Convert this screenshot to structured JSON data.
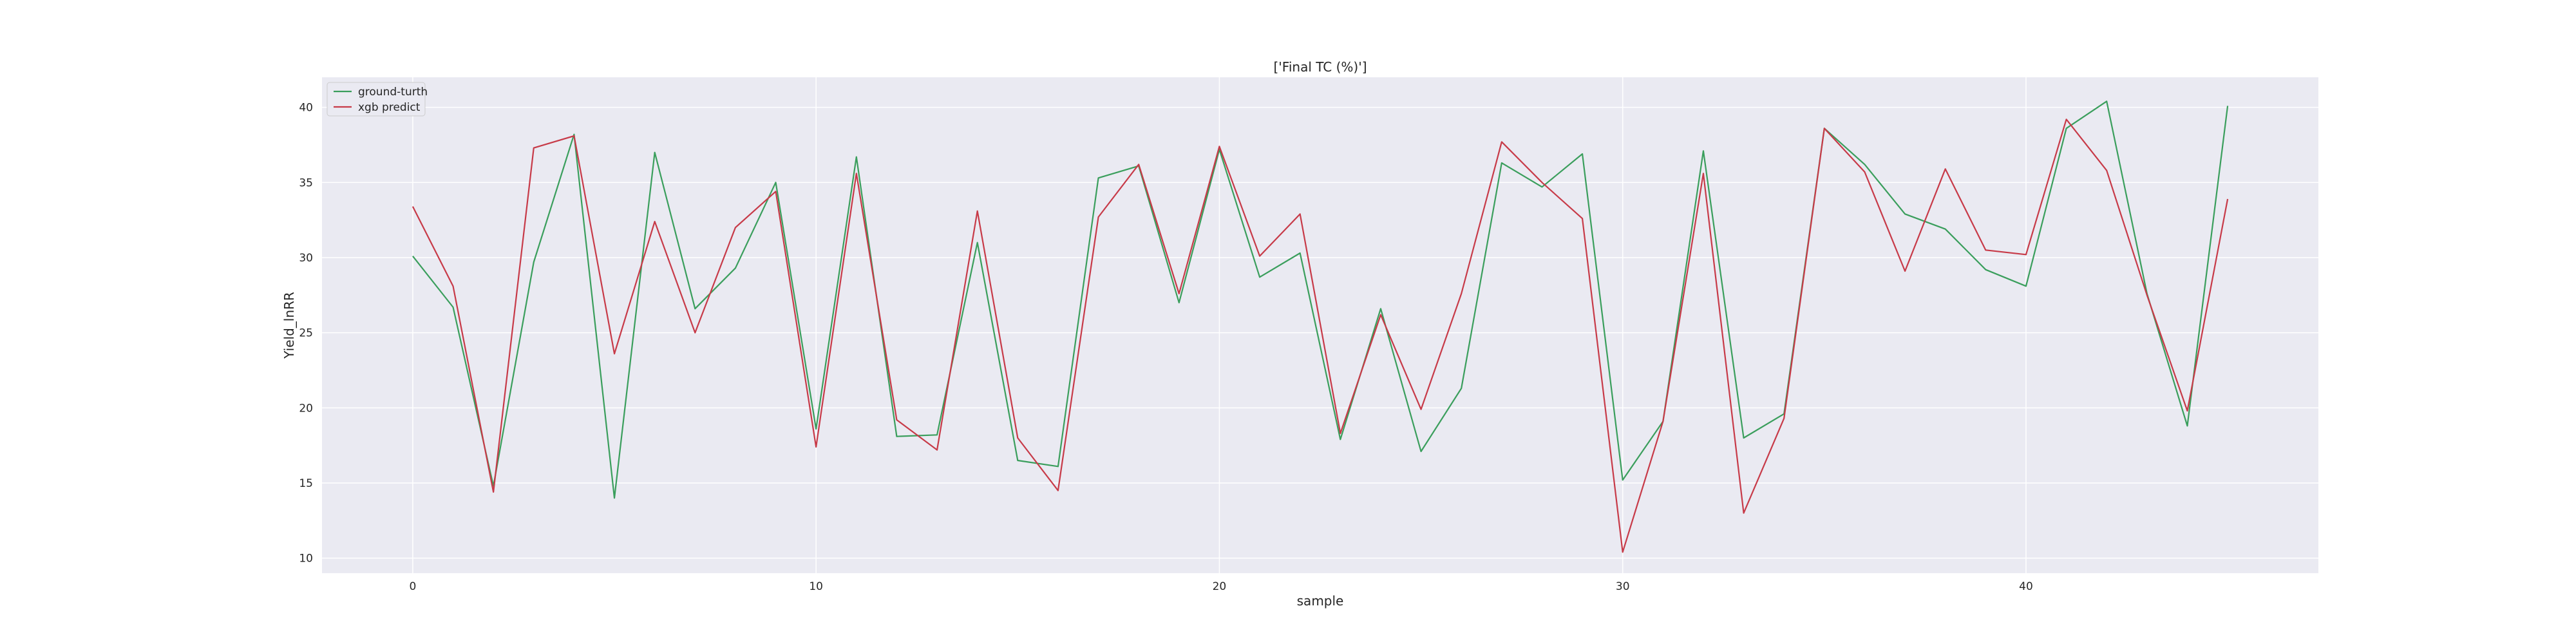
{
  "chart_data": {
    "type": "line",
    "title": "['Final TC (%)']",
    "xlabel": "sample",
    "ylabel": "Yield_lnRR",
    "xlim": [
      -2.25,
      47.25
    ],
    "ylim": [
      9.0,
      42.0
    ],
    "xticks": [
      0,
      10,
      20,
      30,
      40
    ],
    "yticks": [
      10,
      15,
      20,
      25,
      30,
      35,
      40
    ],
    "grid": true,
    "legend_position": "top-left",
    "x": [
      0,
      1,
      2,
      3,
      4,
      5,
      6,
      7,
      8,
      9,
      10,
      11,
      12,
      13,
      14,
      15,
      16,
      17,
      18,
      19,
      20,
      21,
      22,
      23,
      24,
      25,
      26,
      27,
      28,
      29,
      30,
      31,
      32,
      33,
      34,
      35,
      36,
      37,
      38,
      39,
      40,
      41,
      42,
      43,
      44,
      45
    ],
    "series": [
      {
        "name": "ground-turth",
        "color": "#3a9e5c",
        "values": [
          30.1,
          26.7,
          14.8,
          29.7,
          38.2,
          14.0,
          37.0,
          26.6,
          29.3,
          35.0,
          18.6,
          36.7,
          18.1,
          18.2,
          31.0,
          16.5,
          16.1,
          35.3,
          36.1,
          27.0,
          37.2,
          28.7,
          30.3,
          17.9,
          26.6,
          17.1,
          21.3,
          36.3,
          34.7,
          36.9,
          15.2,
          19.1,
          37.1,
          18.0,
          19.6,
          38.6,
          36.2,
          32.9,
          31.9,
          29.2,
          28.1,
          38.6,
          40.4,
          27.6,
          18.8,
          40.1
        ]
      },
      {
        "name": "xgb predict",
        "color": "#c73a48",
        "values": [
          33.4,
          28.1,
          14.4,
          37.3,
          38.1,
          23.6,
          32.4,
          25.0,
          32.0,
          34.4,
          17.4,
          35.6,
          19.2,
          17.2,
          33.1,
          18.0,
          14.5,
          32.7,
          36.2,
          27.6,
          37.4,
          30.1,
          32.9,
          18.3,
          26.2,
          19.9,
          27.6,
          37.7,
          35.0,
          32.6,
          10.4,
          19.1,
          35.6,
          13.0,
          19.3,
          38.6,
          35.7,
          29.1,
          35.9,
          30.5,
          30.2,
          39.2,
          35.8,
          27.5,
          19.8,
          33.9
        ]
      }
    ]
  }
}
